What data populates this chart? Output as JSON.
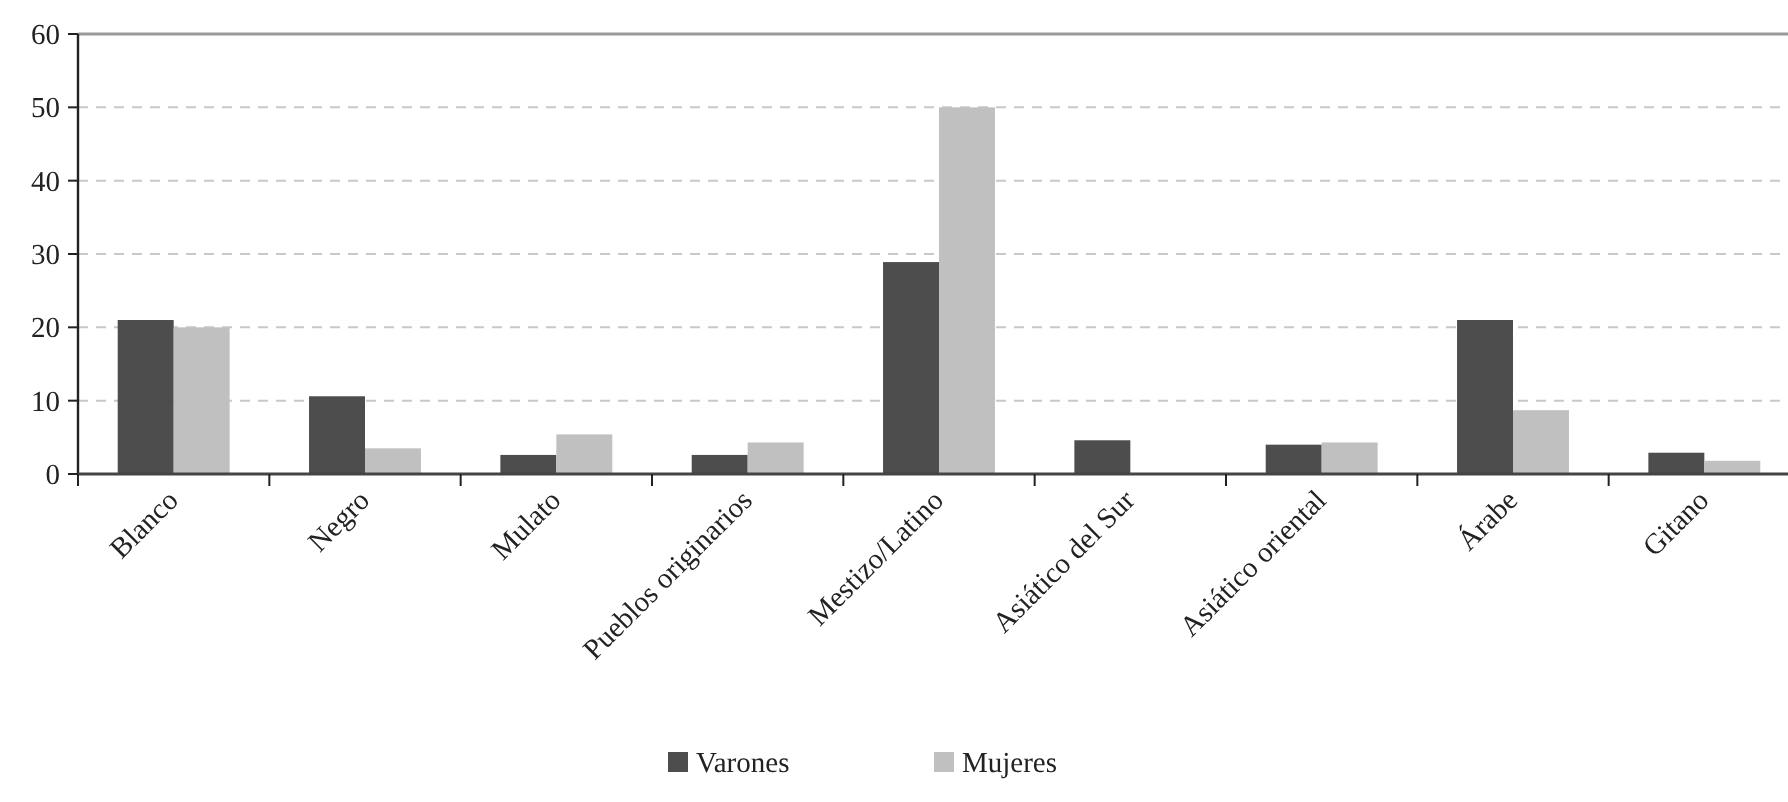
{
  "chart_data": {
    "type": "bar",
    "categories": [
      "Blanco",
      "Negro",
      "Mulato",
      "Pueblos originarios",
      "Mestizo/Latino",
      "Asiático del Sur",
      "Asiático oriental",
      "Árabe",
      "Gitano"
    ],
    "series": [
      {
        "name": "Varones",
        "color": "#4d4d4d",
        "values": [
          21,
          10.6,
          2.6,
          2.6,
          28.9,
          4.6,
          4.0,
          21,
          2.9
        ]
      },
      {
        "name": "Mujeres",
        "color": "#c0c0c0",
        "values": [
          20,
          3.5,
          5.4,
          4.3,
          50,
          0,
          4.3,
          8.7,
          1.8
        ]
      }
    ],
    "ylim": [
      0,
      60
    ],
    "yticks": [
      0,
      10,
      20,
      30,
      40,
      50,
      60
    ],
    "grid": "y",
    "legend": "bottom"
  }
}
